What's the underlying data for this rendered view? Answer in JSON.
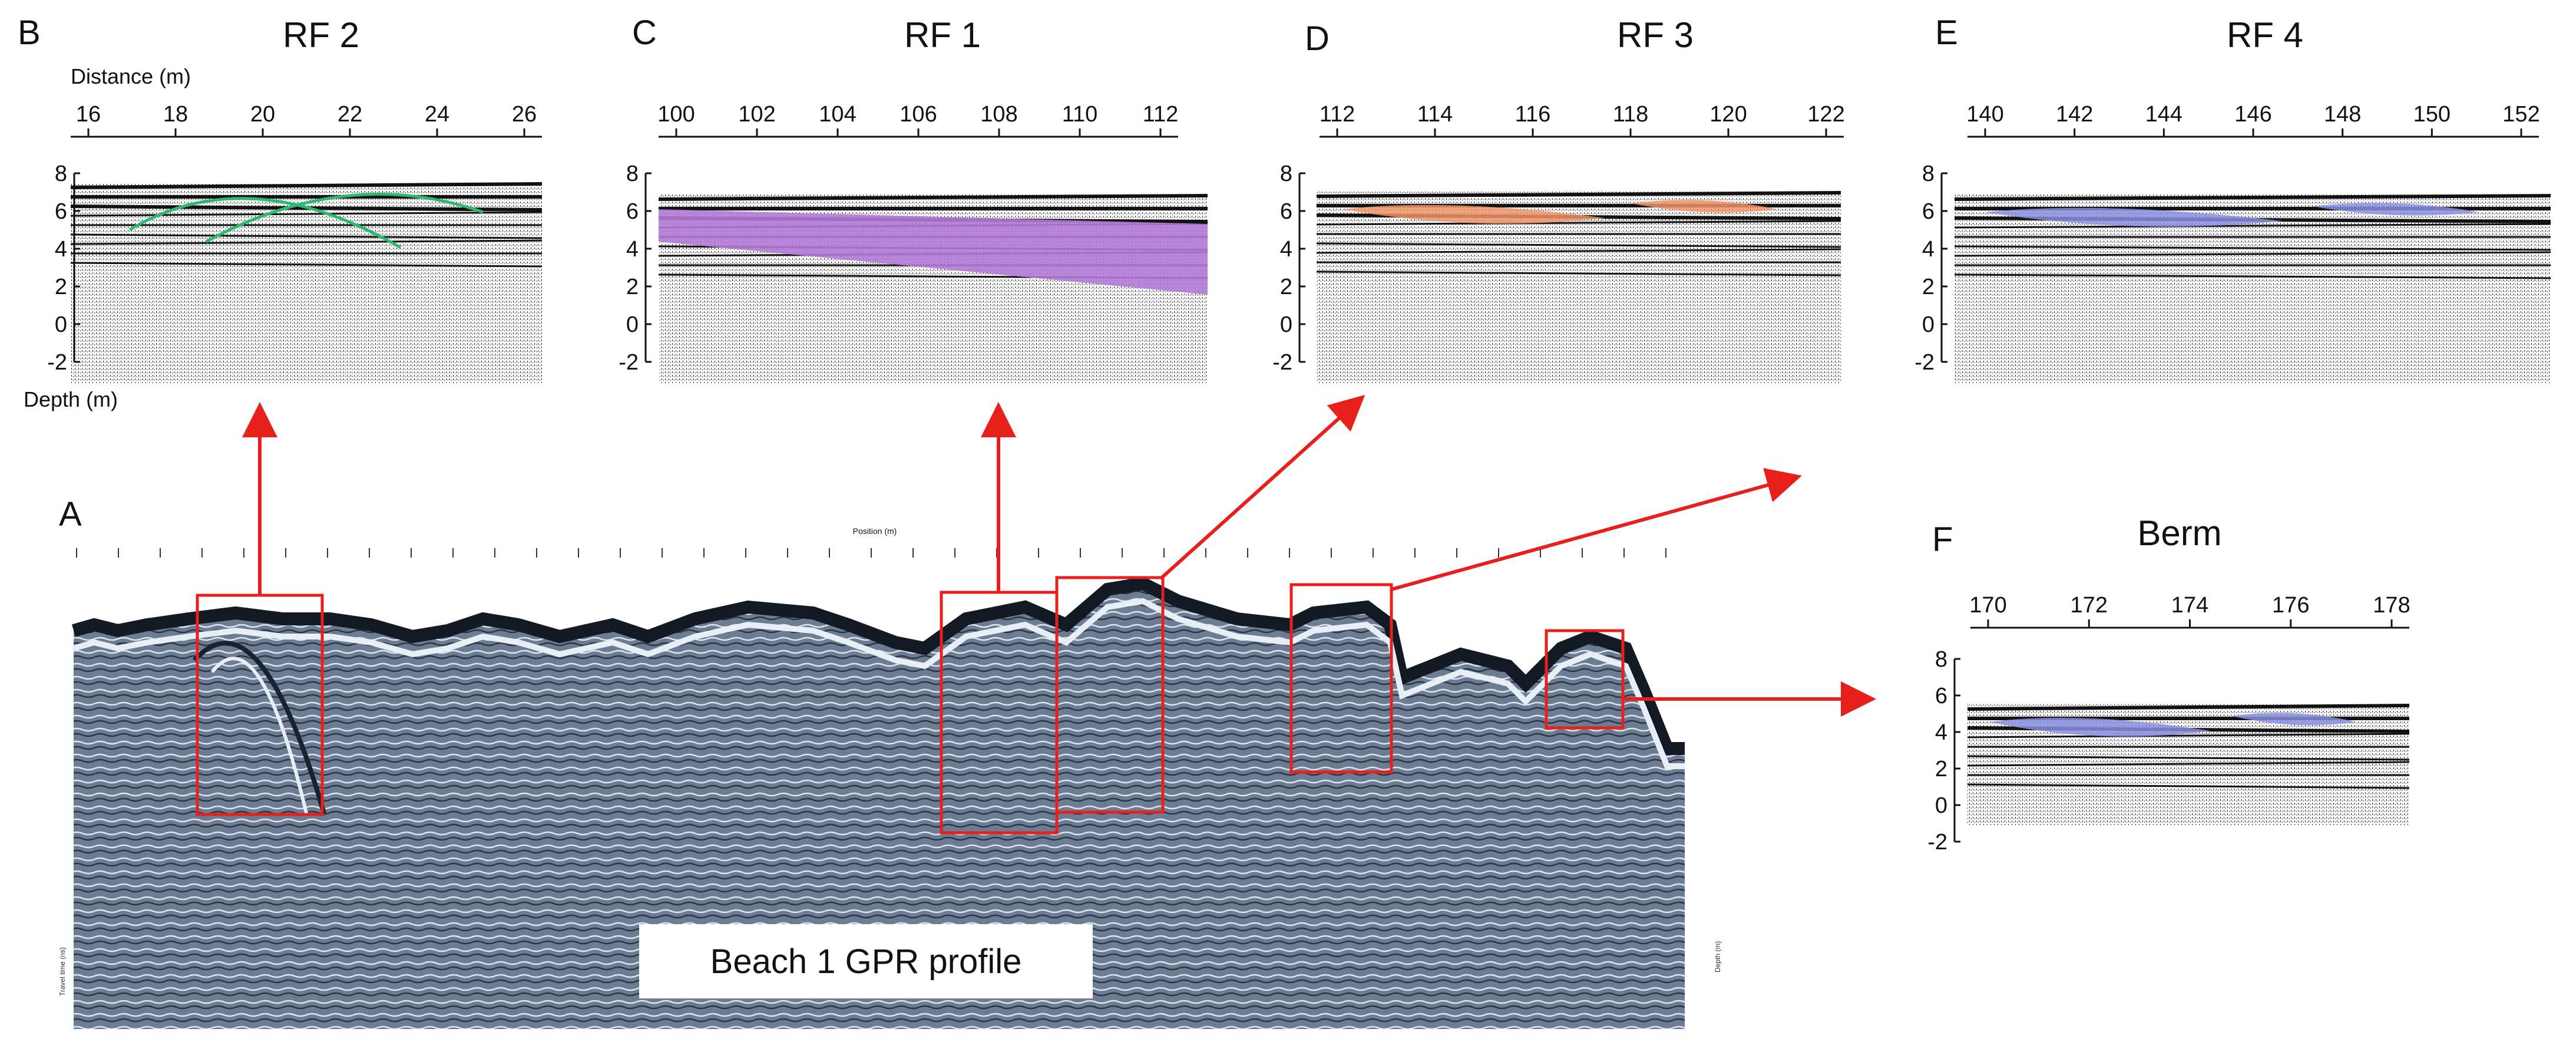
{
  "figure": {
    "panel_A": {
      "letter": "A",
      "caption": "Beach 1 GPR profile",
      "axis_title": "Position (m)",
      "left_axis_title": "Travel time (ns)",
      "right_axis_title": "Depth (m)"
    },
    "panels": [
      {
        "id": "B",
        "letter": "B",
        "title": "RF 2",
        "distance_label": "Distance (m)",
        "depth_label": "Depth (m)",
        "x_ticks": [
          "16",
          "18",
          "20",
          "22",
          "24",
          "26"
        ],
        "y_ticks": [
          "8",
          "6",
          "4",
          "2",
          "0",
          "-2"
        ],
        "overlay": "hyperbola",
        "overlay_color": "#2db872"
      },
      {
        "id": "C",
        "letter": "C",
        "title": "RF 1",
        "x_ticks": [
          "100",
          "102",
          "104",
          "106",
          "108",
          "110",
          "112"
        ],
        "y_ticks": [
          "8",
          "6",
          "4",
          "2",
          "0",
          "-2"
        ],
        "overlay": "band",
        "overlay_color": "#b37ad6"
      },
      {
        "id": "D",
        "letter": "D",
        "title": "RF 3",
        "x_ticks": [
          "112",
          "114",
          "116",
          "118",
          "120",
          "122"
        ],
        "y_ticks": [
          "8",
          "6",
          "4",
          "2",
          "0",
          "-2"
        ],
        "overlay": "lens",
        "overlay_color": "#f0936a"
      },
      {
        "id": "E",
        "letter": "E",
        "title": "RF 4",
        "x_ticks": [
          "140",
          "142",
          "144",
          "146",
          "148",
          "150",
          "152"
        ],
        "y_ticks": [
          "8",
          "6",
          "4",
          "2",
          "0",
          "-2"
        ],
        "overlay": "lens",
        "overlay_color": "#8a8fe0"
      },
      {
        "id": "F",
        "letter": "F",
        "title": "Berm",
        "x_ticks": [
          "170",
          "172",
          "174",
          "176",
          "178"
        ],
        "y_ticks": [
          "8",
          "6",
          "4",
          "2",
          "0",
          "-2"
        ],
        "overlay": "lens",
        "overlay_color": "#8a8fe0"
      }
    ],
    "colors": {
      "arrow": "#e8201c",
      "profile_bg": "#6b7c93",
      "box": "#e8201c"
    }
  }
}
